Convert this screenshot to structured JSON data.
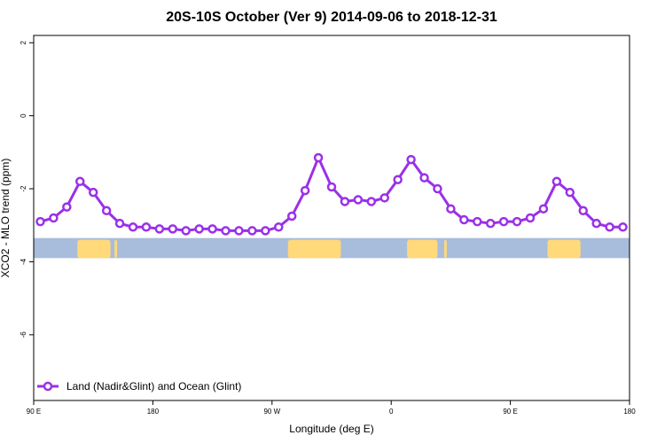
{
  "chart_data": {
    "type": "line",
    "title": "20S-10S October (Ver 9)   2014-09-06 to 2018-12-31",
    "xlabel": "Longitude (deg E)",
    "ylabel": "XCO2 - MLO trend (ppm)",
    "x_ticks": [
      {
        "value": 90,
        "label": "90 E"
      },
      {
        "value": 180,
        "label": "180"
      },
      {
        "value": 270,
        "label": "90 W"
      },
      {
        "value": 360,
        "label": "0"
      },
      {
        "value": 450,
        "label": "90 E"
      },
      {
        "value": 540,
        "label": "180"
      }
    ],
    "y_ticks": [
      {
        "value": 2,
        "label": "2"
      },
      {
        "value": 0,
        "label": "0"
      },
      {
        "value": -2,
        "label": "-2"
      },
      {
        "value": -4,
        "label": "-4"
      },
      {
        "value": -6,
        "label": "-6"
      }
    ],
    "xlim": [
      90,
      540
    ],
    "ylim": [
      -7.8,
      2.2
    ],
    "grid": false,
    "legend": {
      "position": "bottom-left"
    },
    "colors": {
      "series": "#9b30e8",
      "ocean": "#a8bcdc",
      "land": "#ffd97a"
    },
    "land_ocean_band": {
      "y_range": [
        -3.9,
        -3.35
      ],
      "land_spans": [
        [
          123,
          148
        ],
        [
          151,
          153
        ],
        [
          282,
          322
        ],
        [
          372,
          395
        ],
        [
          400,
          402
        ],
        [
          478,
          503
        ]
      ]
    },
    "series": [
      {
        "name": "Land (Nadir&Glint) and Ocean (Glint)",
        "x": [
          95,
          105,
          115,
          125,
          135,
          145,
          155,
          165,
          175,
          185,
          195,
          205,
          215,
          225,
          235,
          245,
          255,
          265,
          275,
          285,
          295,
          305,
          315,
          325,
          335,
          345,
          355,
          365,
          375,
          385,
          395,
          405,
          415,
          425,
          435,
          445,
          455,
          465,
          475,
          485,
          495,
          505,
          515,
          525,
          535
        ],
        "y": [
          -2.9,
          -2.8,
          -2.5,
          -1.8,
          -2.1,
          -2.6,
          -2.95,
          -3.05,
          -3.05,
          -3.1,
          -3.1,
          -3.15,
          -3.1,
          -3.1,
          -3.15,
          -3.15,
          -3.15,
          -3.15,
          -3.05,
          -2.75,
          -2.05,
          -1.15,
          -1.95,
          -2.35,
          -2.3,
          -2.35,
          -2.25,
          -1.75,
          -1.2,
          -1.7,
          -2.0,
          -2.55,
          -2.85,
          -2.9,
          -2.95,
          -2.9,
          -2.9,
          -2.8,
          -2.55,
          -1.8,
          -2.1,
          -2.6,
          -2.95,
          -3.05,
          -3.05
        ]
      }
    ]
  }
}
